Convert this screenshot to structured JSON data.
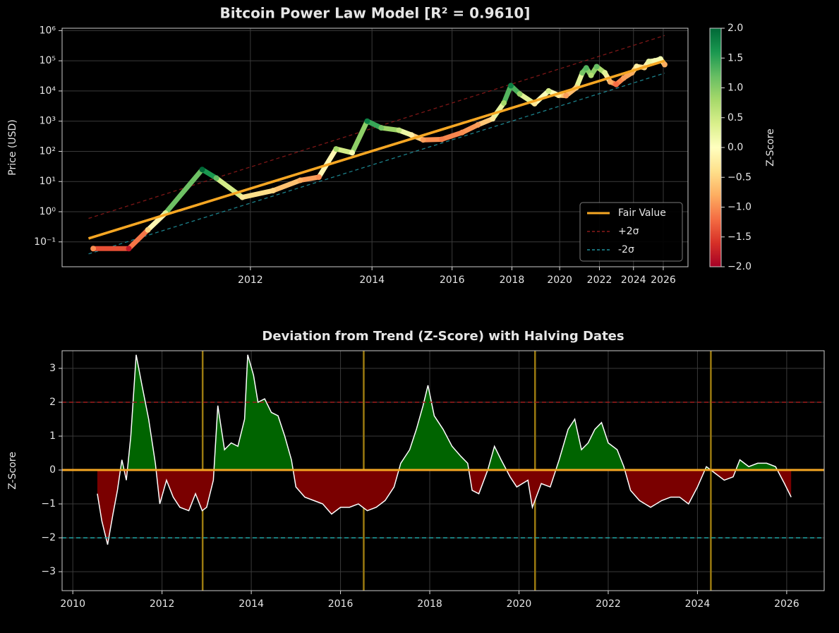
{
  "chart_data": [
    {
      "type": "scatter",
      "title": "Bitcoin Power Law Model [R² = 0.9610]",
      "ylabel": "Price (USD)",
      "xscale": "log",
      "yscale": "log",
      "grid": true,
      "xlim": [
        2010.36,
        2027.86
      ],
      "xticks": [
        2012,
        2014,
        2016,
        2018,
        2020,
        2022,
        2024,
        2026
      ],
      "ylim": [
        0.015,
        1200000
      ],
      "yticks": [
        {
          "value": 0.1,
          "label": "10⁻¹"
        },
        {
          "value": 1,
          "label": "10⁰"
        },
        {
          "value": 10,
          "label": "10¹"
        },
        {
          "value": 100,
          "label": "10²"
        },
        {
          "value": 1000,
          "label": "10³"
        },
        {
          "value": 10000,
          "label": "10⁴"
        },
        {
          "value": 100000,
          "label": "10⁵"
        },
        {
          "value": 1000000,
          "label": "10⁶"
        }
      ],
      "series": [
        {
          "x": [
            2010.55,
            2010.8,
            2010.95,
            2011.1,
            2011.45,
            2011.6,
            2011.9,
            2012.3,
            2012.7,
            2013.0,
            2013.3,
            2013.6,
            2013.9,
            2014.2,
            2014.6,
            2014.9,
            2015.2,
            2015.7,
            2016.3,
            2016.8,
            2017.3,
            2017.7,
            2017.96,
            2018.3,
            2018.9,
            2019.5,
            2019.95,
            2020.3,
            2020.8,
            2021.1,
            2021.3,
            2021.55,
            2021.85,
            2022.3,
            2022.6,
            2022.95,
            2023.4,
            2023.9,
            2024.2,
            2024.7,
            2025.0,
            2025.4,
            2025.8,
            2026.1
          ],
          "values": [
            0.06,
            0.06,
            0.25,
            0.9,
            25,
            13,
            3,
            5,
            11,
            14,
            120,
            90,
            1000,
            600,
            500,
            350,
            240,
            250,
            420,
            750,
            1200,
            4000,
            15000,
            8000,
            3800,
            10000,
            7200,
            7000,
            13000,
            40000,
            58000,
            33000,
            64000,
            40000,
            20000,
            16500,
            27000,
            40000,
            65000,
            60000,
            95000,
            100000,
            115000,
            75000
          ],
          "z": [
            -1.0,
            -1.8,
            -0.5,
            0.3,
            2.0,
            1.2,
            -0.3,
            -0.5,
            -0.8,
            -1.0,
            0.8,
            0.1,
            1.8,
            1.1,
            0.6,
            -0.2,
            -0.9,
            -1.1,
            -1.0,
            -0.9,
            -0.3,
            0.8,
            1.8,
            0.9,
            -0.3,
            0.4,
            -0.3,
            -0.9,
            -0.5,
            1.1,
            1.3,
            0.7,
            1.2,
            0.3,
            -0.8,
            -1.2,
            -0.9,
            -0.8,
            -0.2,
            -0.5,
            0.2,
            0.1,
            0.1,
            -0.8
          ]
        }
      ],
      "lines": [
        {
          "name": "Fair Value",
          "color": "#f5a623",
          "style": "solid",
          "x": [
            2010.52,
            2026.1
          ],
          "values": [
            0.13,
            100000
          ]
        },
        {
          "name": "+2σ",
          "color": "#8b1a1a",
          "style": "dashed",
          "x": [
            2010.52,
            2026.1
          ],
          "values": [
            0.6,
            690000
          ]
        },
        {
          "name": "-2σ",
          "color": "#1f8f9a",
          "style": "dashed",
          "x": [
            2010.52,
            2026.1
          ],
          "values": [
            0.04,
            39000
          ]
        }
      ],
      "legend": "lower right",
      "colorbar": {
        "label": "Z-Score",
        "cmap": "RdYlGn",
        "lim": [
          -2,
          2
        ],
        "ticks": [
          {
            "value": 2,
            "label": "2.0"
          },
          {
            "value": 1.5,
            "label": "1.5"
          },
          {
            "value": 1,
            "label": "1.0"
          },
          {
            "value": 0.5,
            "label": "0.5"
          },
          {
            "value": 0,
            "label": "0.0"
          },
          {
            "value": -0.5,
            "label": "−0.5"
          },
          {
            "value": -1,
            "label": "−1.0"
          },
          {
            "value": -1.5,
            "label": "−1.5"
          },
          {
            "value": -2,
            "label": "−2.0"
          }
        ]
      }
    },
    {
      "type": "line",
      "title": "Deviation from Trend (Z-Score) with Halving Dates",
      "ylabel": "Z-Score",
      "grid": true,
      "xlim": [
        2009.76,
        2026.84
      ],
      "xticks": [
        2010,
        2012,
        2014,
        2016,
        2018,
        2020,
        2022,
        2024,
        2026
      ],
      "ylim": [
        -3.56,
        3.52
      ],
      "yticks": [
        {
          "value": -3,
          "label": "−3"
        },
        {
          "value": -2,
          "label": "−2"
        },
        {
          "value": -1,
          "label": "−1"
        },
        0,
        1,
        2,
        3
      ],
      "x": [
        2010.55,
        2010.65,
        2010.78,
        2010.9,
        2011.0,
        2011.1,
        2011.2,
        2011.3,
        2011.42,
        2011.55,
        2011.7,
        2011.85,
        2011.95,
        2012.1,
        2012.25,
        2012.4,
        2012.6,
        2012.75,
        2012.9,
        2013.0,
        2013.15,
        2013.25,
        2013.4,
        2013.55,
        2013.7,
        2013.85,
        2013.92,
        2014.05,
        2014.15,
        2014.3,
        2014.45,
        2014.6,
        2014.75,
        2014.9,
        2015.0,
        2015.2,
        2015.4,
        2015.6,
        2015.8,
        2016.0,
        2016.2,
        2016.4,
        2016.6,
        2016.8,
        2017.0,
        2017.2,
        2017.35,
        2017.55,
        2017.7,
        2017.85,
        2017.96,
        2018.1,
        2018.3,
        2018.5,
        2018.7,
        2018.85,
        2018.95,
        2019.1,
        2019.3,
        2019.45,
        2019.6,
        2019.8,
        2019.95,
        2020.2,
        2020.3,
        2020.5,
        2020.7,
        2020.9,
        2021.1,
        2021.25,
        2021.4,
        2021.55,
        2021.7,
        2021.85,
        2022.0,
        2022.2,
        2022.35,
        2022.5,
        2022.7,
        2022.95,
        2023.2,
        2023.4,
        2023.6,
        2023.8,
        2024.0,
        2024.2,
        2024.4,
        2024.6,
        2024.8,
        2024.95,
        2025.15,
        2025.35,
        2025.55,
        2025.75,
        2025.95,
        2026.1
      ],
      "series": [
        {
          "color": "#ffffff",
          "values": [
            -0.7,
            -1.5,
            -2.2,
            -1.3,
            -0.6,
            0.3,
            -0.3,
            1.0,
            3.4,
            2.5,
            1.5,
            0.2,
            -1.0,
            -0.3,
            -0.8,
            -1.1,
            -1.2,
            -0.7,
            -1.2,
            -1.1,
            -0.3,
            1.9,
            0.6,
            0.8,
            0.7,
            1.5,
            3.4,
            2.8,
            2.0,
            2.1,
            1.7,
            1.6,
            1.0,
            0.3,
            -0.5,
            -0.8,
            -0.9,
            -1.0,
            -1.3,
            -1.1,
            -1.1,
            -1.0,
            -1.2,
            -1.1,
            -0.9,
            -0.5,
            0.2,
            0.6,
            1.2,
            1.9,
            2.5,
            1.6,
            1.2,
            0.7,
            0.4,
            0.2,
            -0.6,
            -0.7,
            0.0,
            0.7,
            0.3,
            -0.2,
            -0.5,
            -0.3,
            -1.1,
            -0.4,
            -0.5,
            0.3,
            1.2,
            1.5,
            0.6,
            0.8,
            1.2,
            1.4,
            0.8,
            0.6,
            0.1,
            -0.6,
            -0.9,
            -1.1,
            -0.9,
            -0.8,
            -0.8,
            -1.0,
            -0.5,
            0.1,
            -0.1,
            -0.3,
            -0.2,
            0.3,
            0.1,
            0.2,
            0.2,
            0.1,
            -0.4,
            -0.8
          ]
        }
      ],
      "fill_colors": {
        "above": "#006400",
        "below": "#7a0000"
      },
      "reference_lines": [
        {
          "value": 2,
          "color": "#a01c1c",
          "style": "dashed"
        },
        {
          "value": 0,
          "color": "#f5a623",
          "style": "solid"
        },
        {
          "value": -2,
          "color": "#1fa5a5",
          "style": "dashed"
        }
      ],
      "halvings": {
        "color": "#9a7a10",
        "x": [
          2012.91,
          2016.52,
          2020.36,
          2024.3
        ]
      }
    }
  ]
}
